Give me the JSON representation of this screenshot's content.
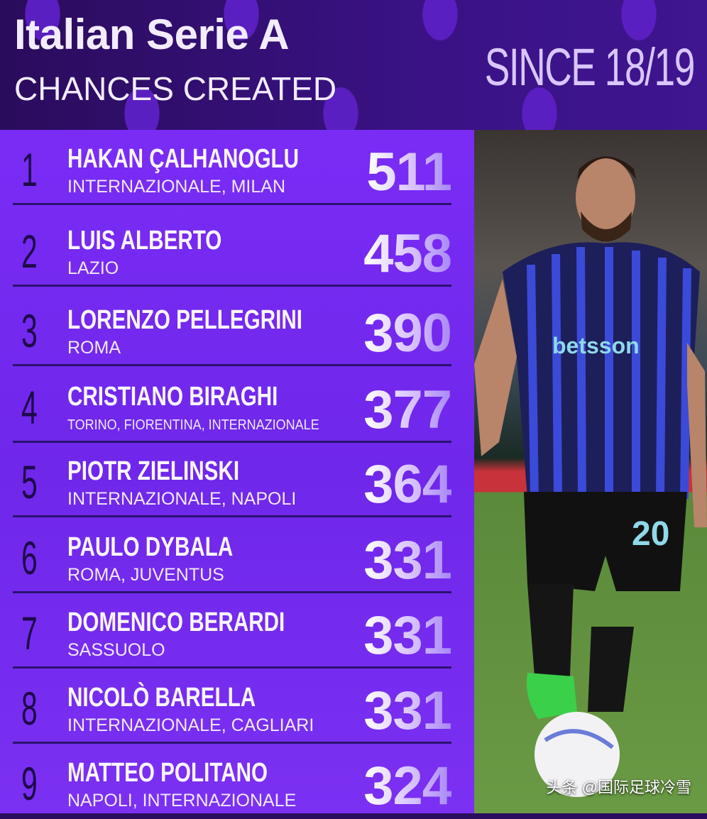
{
  "header": {
    "title": "Italian Serie A",
    "subtitle": "CHANCES CREATED",
    "since": "SINCE 18/19"
  },
  "colors": {
    "header_bg": "#2a0d5e",
    "list_bg": "#7a2cf5",
    "rank": "#1e0a4a",
    "value": "#d4bdff"
  },
  "chart_data": {
    "type": "table",
    "title": "Italian Serie A",
    "subtitle": "CHANCES CREATED",
    "columns": [
      "rank",
      "player",
      "teams",
      "chances_created"
    ],
    "rows": [
      {
        "rank": "1",
        "name": "HAKAN ÇALHANOGLU",
        "team": "INTERNAZIONALE, MILAN",
        "value": "511"
      },
      {
        "rank": "2",
        "name": "LUIS ALBERTO",
        "team": "LAZIO",
        "value": "458"
      },
      {
        "rank": "3",
        "name": "LORENZO PELLEGRINI",
        "team": "ROMA",
        "value": "390"
      },
      {
        "rank": "4",
        "name": "CRISTIANO BIRAGHI",
        "team": "TORINO, FIORENTINA, INTERNAZIONALE",
        "value": "377"
      },
      {
        "rank": "5",
        "name": "PIOTR ZIELINSKI",
        "team": "INTERNAZIONALE, NAPOLI",
        "value": "364"
      },
      {
        "rank": "6",
        "name": "PAULO DYBALA",
        "team": "ROMA, JUVENTUS",
        "value": "331"
      },
      {
        "rank": "7",
        "name": "DOMENICO BERARDI",
        "team": "SASSUOLO",
        "value": "331"
      },
      {
        "rank": "8",
        "name": "NICOLÒ BARELLA",
        "team": "INTERNAZIONALE, CAGLIARI",
        "value": "331"
      },
      {
        "rank": "9",
        "name": "MATTEO POLITANO",
        "team": "NAPOLI, INTERNAZIONALE",
        "value": "324"
      }
    ]
  },
  "photo": {
    "jersey_sponsor": "betsson",
    "jersey_number": "20"
  },
  "watermark": "头条 @国际足球冷雪"
}
